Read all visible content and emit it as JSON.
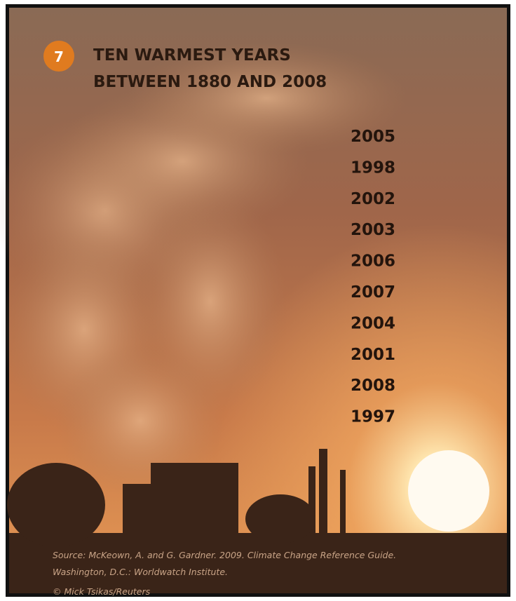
{
  "badge": "7",
  "title": {
    "lines": [
      "TEN WARMEST YEARS",
      "BETWEEN 1880 AND 2008"
    ]
  },
  "years": [
    "2005",
    "1998",
    "2002",
    "2003",
    "2006",
    "2007",
    "2004",
    "2001",
    "2008",
    "1997"
  ],
  "source": {
    "lines": [
      "Source: McKeown, A. and G. Gardner. 2009. Climate Change Reference Guide.",
      "Washington, D.C.: Worldwatch Institute."
    ]
  },
  "credit": "© Mick Tsikas/Reuters"
}
